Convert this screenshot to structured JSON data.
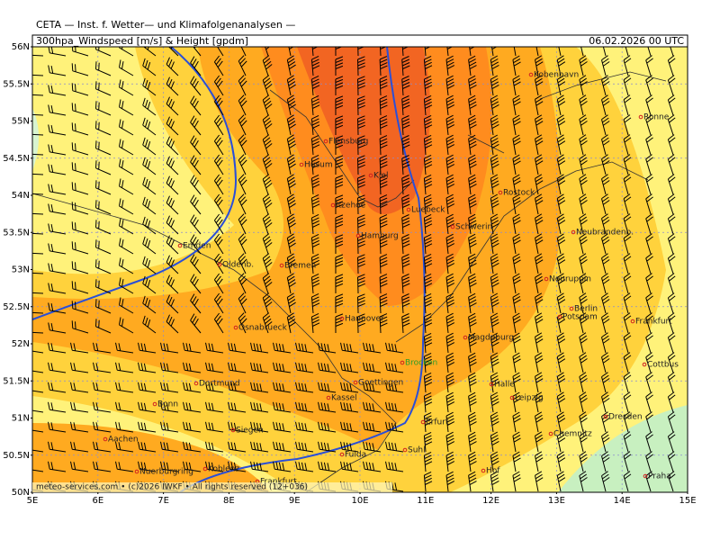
{
  "header": {
    "title": "CETA — Inst. f. Wetter— und Klimafolgenanalysen —",
    "product": "300hpa_Windspeed [m/s] & Height [gpdm]",
    "date": "06.02.2026 00 UTC"
  },
  "axes": {
    "lat_labels": [
      "56N",
      "55.5N",
      "55N",
      "54.5N",
      "54N",
      "53.5N",
      "53N",
      "52.5N",
      "52N",
      "51.5N",
      "51N",
      "50.5N",
      "50N"
    ],
    "lon_labels": [
      "5E",
      "6E",
      "7E",
      "8E",
      "9E",
      "10E",
      "11E",
      "12E",
      "13E",
      "14E",
      "15E"
    ]
  },
  "cities": [
    "Kobenhavn",
    "Ronne",
    "Flensburg",
    "Husum",
    "Kiel",
    "Rostock",
    "Itzehoe",
    "Luebeck",
    "Schwerin",
    "Hamburg",
    "Neubrandenb.",
    "Emden",
    "Oldenb.",
    "Bremen",
    "Neuruppin",
    "Berlin",
    "Potsdam",
    "Frankfurt",
    "Hannover",
    "Osnabrueck",
    "Magdeburg",
    "Cottbus",
    "Brocken",
    "Dortmund",
    "Goettingen",
    "Halle",
    "Kassel",
    "Leipzig",
    "Bonn",
    "Erfurt",
    "Dresden",
    "Aachen",
    "Siegen",
    "Chemnitz",
    "Fulda",
    "Suhl",
    "Hof",
    "Nuerburgring",
    "Koblenz",
    "Frankfurt",
    "Praha"
  ],
  "footer": "meteo-services.com • (c)2026 IWKF • All rights reserved (12+036)"
}
